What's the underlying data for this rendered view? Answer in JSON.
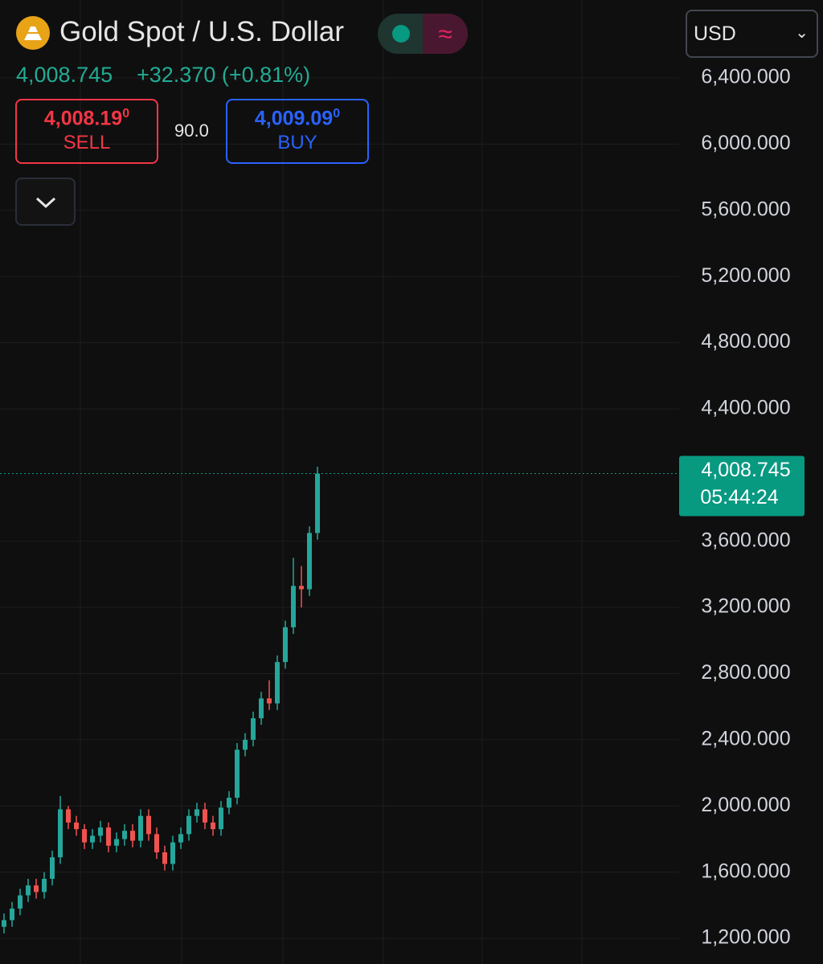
{
  "header": {
    "title": "Gold Spot / U.S. Dollar",
    "price": "4,008.745",
    "change": "+32.370 (+0.81%)",
    "currency": "USD"
  },
  "trade": {
    "sell_price": "4,008.19",
    "sell_price_sup": "0",
    "sell_label": "SELL",
    "spread": "90.0",
    "buy_price": "4,009.09",
    "buy_price_sup": "0",
    "buy_label": "BUY"
  },
  "chart_data": {
    "type": "candlestick",
    "categories": [
      null,
      null,
      null,
      null,
      null,
      null,
      null,
      null,
      null,
      null,
      null,
      null,
      null,
      null,
      null,
      null,
      null,
      null,
      null,
      null,
      null,
      null,
      null,
      null,
      null,
      null,
      null,
      null,
      null,
      null,
      null,
      null,
      null,
      null,
      null,
      null,
      null,
      null,
      null,
      null
    ],
    "open": [
      1270,
      1310,
      1380,
      1460,
      1520,
      1480,
      1560,
      1690,
      1980,
      1900,
      1860,
      1780,
      1820,
      1870,
      1760,
      1800,
      1850,
      1790,
      1940,
      1830,
      1720,
      1650,
      1780,
      1830,
      1940,
      1980,
      1900,
      1860,
      1990,
      2050,
      2340,
      2400,
      2530,
      2650,
      2620,
      2870,
      3080,
      3330,
      3310,
      3650
    ],
    "high": [
      1350,
      1420,
      1500,
      1560,
      1560,
      1600,
      1730,
      2060,
      2000,
      1940,
      1890,
      1860,
      1910,
      1900,
      1840,
      1890,
      1890,
      1980,
      1980,
      1870,
      1760,
      1820,
      1870,
      1980,
      2020,
      2020,
      1940,
      2030,
      2090,
      2380,
      2440,
      2570,
      2690,
      2760,
      2910,
      3120,
      3500,
      3450,
      3690,
      4050
    ],
    "low": [
      1230,
      1270,
      1340,
      1420,
      1440,
      1440,
      1520,
      1650,
      1860,
      1820,
      1740,
      1740,
      1780,
      1720,
      1720,
      1760,
      1750,
      1750,
      1790,
      1680,
      1610,
      1610,
      1740,
      1790,
      1900,
      1860,
      1820,
      1820,
      1950,
      2010,
      2300,
      2360,
      2490,
      2580,
      2580,
      2830,
      3040,
      3200,
      3270,
      3610
    ],
    "close": [
      1310,
      1380,
      1460,
      1520,
      1480,
      1560,
      1690,
      1980,
      1900,
      1860,
      1780,
      1820,
      1870,
      1760,
      1800,
      1850,
      1790,
      1940,
      1830,
      1720,
      1650,
      1780,
      1830,
      1940,
      1980,
      1900,
      1860,
      1990,
      2050,
      2340,
      2400,
      2530,
      2650,
      2620,
      2870,
      3080,
      3330,
      3310,
      3650,
      4008
    ],
    "up_color": "#26a69a",
    "down_color": "#ef5350",
    "ylim": [
      1045,
      6871
    ],
    "yticks": [
      {
        "value": 1200,
        "label": "1,200.000"
      },
      {
        "value": 1600,
        "label": "1,600.000"
      },
      {
        "value": 2000,
        "label": "2,000.000"
      },
      {
        "value": 2400,
        "label": "2,400.000"
      },
      {
        "value": 2800,
        "label": "2,800.000"
      },
      {
        "value": 3200,
        "label": "3,200.000"
      },
      {
        "value": 3600,
        "label": "3,600.000"
      },
      {
        "value": 4400,
        "label": "4,400.000"
      },
      {
        "value": 4800,
        "label": "4,800.000"
      },
      {
        "value": 5200,
        "label": "5,200.000"
      },
      {
        "value": 5600,
        "label": "5,600.000"
      },
      {
        "value": 6000,
        "label": "6,000.000"
      },
      {
        "value": 6400,
        "label": "6,400.000"
      }
    ],
    "grid": true,
    "last_price": {
      "value": 4008.745,
      "label": "4,008.745"
    },
    "countdown": "05:44:24",
    "last_price_color": "#089981"
  }
}
